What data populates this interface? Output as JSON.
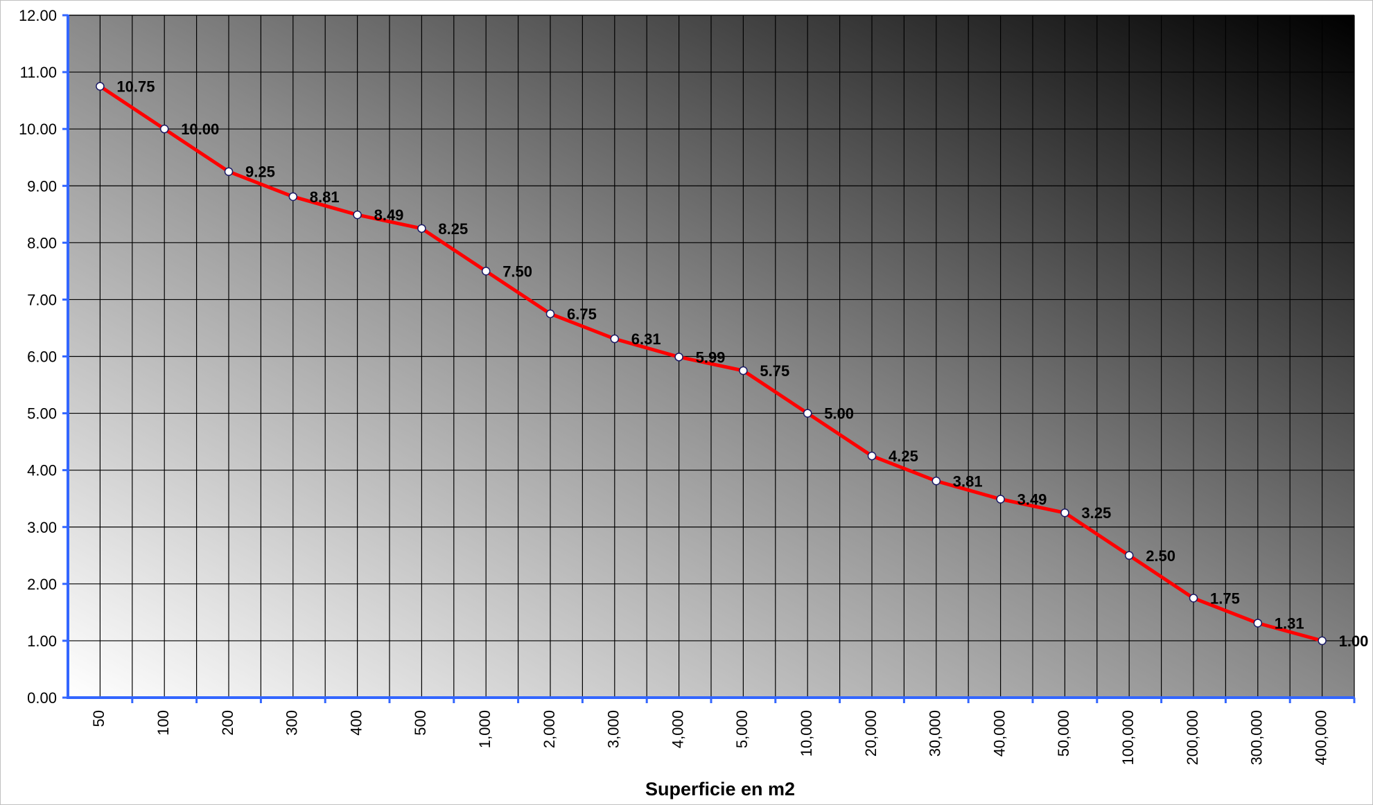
{
  "chart_data": {
    "type": "line",
    "title": "",
    "xlabel": "Superficie en m2",
    "ylabel": "",
    "categories": [
      "50",
      "100",
      "200",
      "300",
      "400",
      "500",
      "1,000",
      "2,000",
      "3,000",
      "4,000",
      "5,000",
      "10,000",
      "20,000",
      "30,000",
      "40,000",
      "50,000",
      "100,000",
      "200,000",
      "300,000",
      "400,000"
    ],
    "series": [
      {
        "values": [
          10.75,
          10.0,
          9.25,
          8.81,
          8.49,
          8.25,
          7.5,
          6.75,
          6.31,
          5.99,
          5.75,
          5.0,
          4.25,
          3.81,
          3.49,
          3.25,
          2.5,
          1.75,
          1.31,
          1.0
        ],
        "data_labels": [
          "10.75",
          "10.00",
          "9.25",
          "8.81",
          "8.49",
          "8.25",
          "7.50",
          "6.75",
          "6.31",
          "5.99",
          "5.75",
          "5.00",
          "4.25",
          "3.81",
          "3.49",
          "3.25",
          "2.50",
          "1.75",
          "1.31",
          "1.00"
        ],
        "color": "#ff0000",
        "marker": "circle"
      }
    ],
    "y_tick_labels": [
      "0.00",
      "1.00",
      "2.00",
      "3.00",
      "4.00",
      "5.00",
      "6.00",
      "7.00",
      "8.00",
      "9.00",
      "10.00",
      "11.00",
      "12.00"
    ],
    "ylim": [
      0,
      12
    ],
    "grid": true,
    "legend": "none",
    "colors": {
      "axis": "#3366ff",
      "grid": "#000000",
      "line": "#ff0000",
      "background_light": "#ffffff",
      "background_dark": "#000000"
    }
  }
}
